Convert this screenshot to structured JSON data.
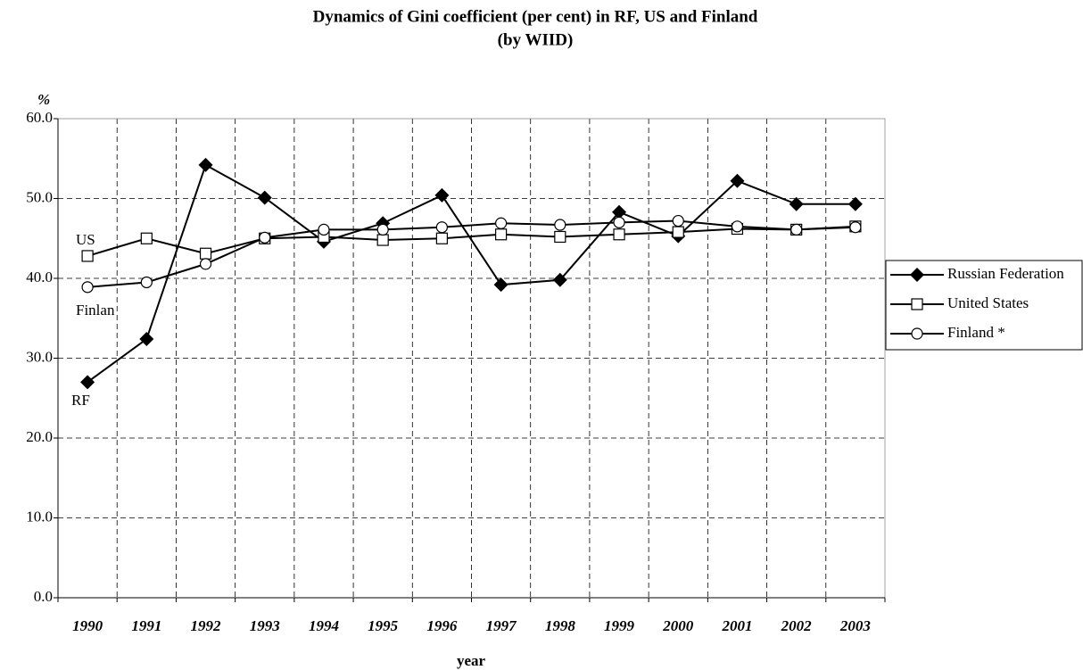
{
  "chart_data": {
    "type": "line",
    "title": "Dynamics of Gini coefficient (per cent)  in RF, US and Finland",
    "subtitle": "(by WIID)",
    "y_label": "%",
    "x_label": "year",
    "categories": [
      "1990",
      "1991",
      "1992",
      "1993",
      "1994",
      "1995",
      "1996",
      "1997",
      "1998",
      "1999",
      "2000",
      "2001",
      "2002",
      "2003"
    ],
    "series": [
      {
        "name": "Russian Federation",
        "color": "#000000",
        "marker": "diamond",
        "values": [
          27.0,
          32.4,
          54.2,
          50.1,
          44.6,
          46.9,
          50.4,
          39.2,
          39.8,
          48.3,
          45.3,
          52.2,
          49.3,
          49.3
        ]
      },
      {
        "name": "United States",
        "color": "#000000",
        "marker": "square",
        "values": [
          42.8,
          45.0,
          43.1,
          45.0,
          45.2,
          44.8,
          45.0,
          45.5,
          45.2,
          45.5,
          45.8,
          46.2,
          46.1,
          46.5
        ]
      },
      {
        "name": "Finland *",
        "color": "#000000",
        "marker": "circle",
        "values": [
          38.9,
          39.5,
          41.8,
          45.1,
          46.1,
          46.1,
          46.4,
          46.9,
          46.7,
          47.0,
          47.2,
          46.5,
          46.1,
          46.4
        ]
      }
    ],
    "annotations": [
      {
        "text": "US"
      },
      {
        "text": "Finlan"
      },
      {
        "text": "RF"
      }
    ],
    "ylim": [
      0,
      60
    ],
    "yticks": [
      {
        "value": 0,
        "label": "0.0"
      },
      {
        "value": 10,
        "label": "10.0"
      },
      {
        "value": 20,
        "label": "20.0"
      },
      {
        "value": 30,
        "label": "30.0"
      },
      {
        "value": 40,
        "label": "40.0"
      },
      {
        "value": 50,
        "label": "50.0"
      },
      {
        "value": 60,
        "label": "60.0"
      }
    ],
    "grid": true,
    "legend": "right"
  }
}
